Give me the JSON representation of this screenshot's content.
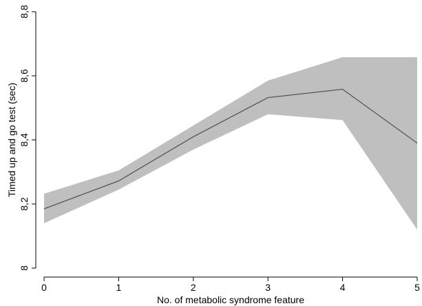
{
  "chart_data": {
    "type": "line",
    "title": "",
    "xlabel": "No. of metabolic syndrome feature",
    "ylabel": "Timed up and go test (sec)",
    "x": [
      0,
      1,
      2,
      3,
      4,
      5
    ],
    "xlim": [
      0,
      5
    ],
    "ylim": [
      8.0,
      8.8
    ],
    "xticks": [
      "0",
      "1",
      "2",
      "3",
      "4",
      "5"
    ],
    "yticks": [
      "8",
      "8,2",
      "8,4",
      "8,6",
      "8,8"
    ],
    "grid": false,
    "legend": "none",
    "series": [
      {
        "values": [
          8.185,
          8.272,
          8.41,
          8.532,
          8.558,
          8.39
        ]
      }
    ],
    "ci_lower": [
      8.14,
      8.245,
      8.37,
      8.48,
      8.462,
      8.12
    ],
    "ci_upper": [
      8.232,
      8.305,
      8.445,
      8.585,
      8.658,
      8.658
    ],
    "colors": {
      "band": "#bfbfbf",
      "line": "#555555",
      "axis": "#000000"
    }
  }
}
